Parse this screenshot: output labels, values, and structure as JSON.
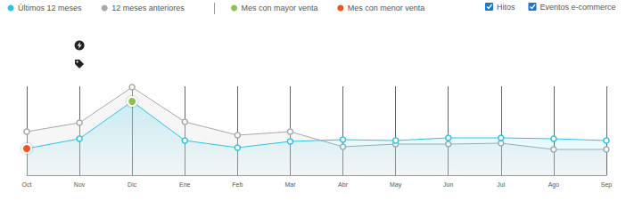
{
  "chart_data": {
    "type": "line",
    "categories": [
      "Oct",
      "Nov",
      "Dic",
      "Ene",
      "Feb",
      "Mar",
      "Abr",
      "May",
      "Jun",
      "Jul",
      "Ago",
      "Sep"
    ],
    "series": [
      {
        "name": "Últimos 12 meses",
        "color": "#29c5e6",
        "values": [
          30,
          41,
          83,
          39,
          31,
          38,
          40,
          39,
          42,
          42,
          41,
          39
        ]
      },
      {
        "name": "12 meses anteriores",
        "color": "#a8a8a8",
        "values": [
          49,
          59,
          99,
          60,
          45,
          49,
          32,
          35,
          35,
          36,
          29,
          29
        ]
      }
    ],
    "highlights": [
      {
        "label": "Mes con mayor venta",
        "color": "#8bc34a",
        "category": "Dic"
      },
      {
        "label": "Mes con menor venta",
        "color": "#f4511e",
        "category": "Oct"
      }
    ],
    "toggles": [
      {
        "label": "Hitos",
        "checked": true,
        "category": "Nov"
      },
      {
        "label": "Eventos e-commerce",
        "checked": true,
        "category": "Nov"
      }
    ],
    "ylim": [
      0,
      100
    ],
    "yticks": [
      0,
      100
    ],
    "grid": "x",
    "tick_labels": "x",
    "marker": "circle"
  }
}
